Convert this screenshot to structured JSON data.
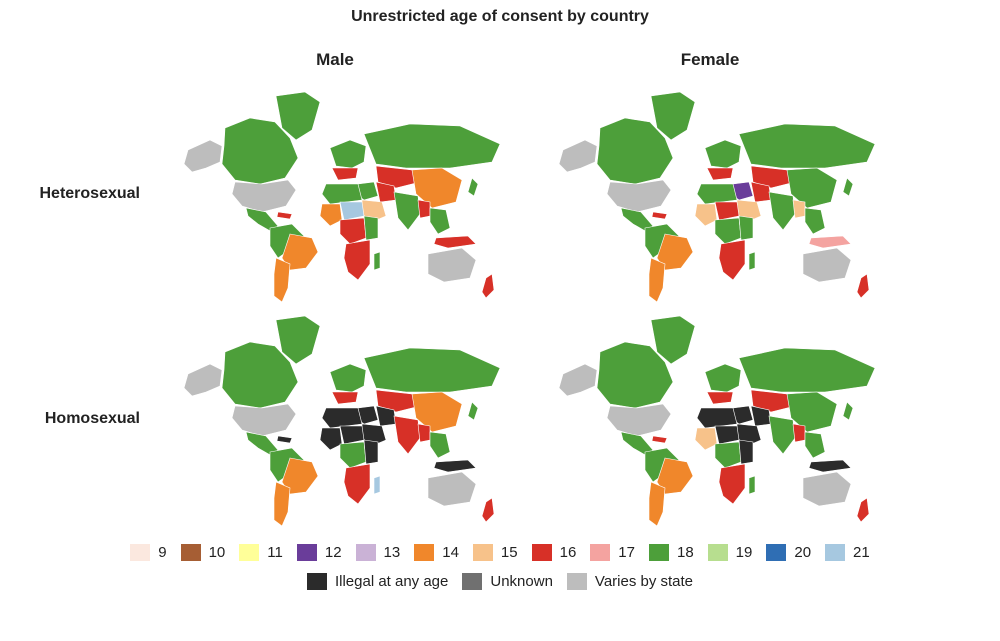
{
  "title": "Unrestricted age of consent by country",
  "columns": [
    "Male",
    "Female"
  ],
  "rows": [
    "Heterosexual",
    "Homosexual"
  ],
  "colors": {
    "9": "#fbe8df",
    "10": "#a65e34",
    "11": "#ffff99",
    "12": "#6a3d9a",
    "13": "#cab2d6",
    "14": "#f0872b",
    "15": "#f7c28a",
    "16": "#d73027",
    "17": "#f4a3a0",
    "18": "#4d9f3a",
    "19": "#b7de8f",
    "20": "#2f6eb4",
    "21": "#a6c8e0",
    "illegal": "#2b2b2b",
    "unknown": "#707070",
    "varies": "#bdbdbd"
  },
  "legend_row1": [
    {
      "label": "9",
      "key": "9"
    },
    {
      "label": "10",
      "key": "10"
    },
    {
      "label": "11",
      "key": "11"
    },
    {
      "label": "12",
      "key": "12"
    },
    {
      "label": "13",
      "key": "13"
    },
    {
      "label": "14",
      "key": "14"
    },
    {
      "label": "15",
      "key": "15"
    },
    {
      "label": "16",
      "key": "16"
    },
    {
      "label": "17",
      "key": "17"
    },
    {
      "label": "18",
      "key": "18"
    },
    {
      "label": "19",
      "key": "19"
    },
    {
      "label": "20",
      "key": "20"
    },
    {
      "label": "21",
      "key": "21"
    }
  ],
  "legend_row2": [
    {
      "label": "Illegal at any age",
      "key": "illegal"
    },
    {
      "label": "Unknown",
      "key": "unknown"
    },
    {
      "label": "Varies by state",
      "key": "varies"
    }
  ],
  "maps": {
    "hetero_male": {
      "north_america": "18",
      "usa": "varies",
      "alaska": "varies",
      "greenland": "18",
      "canada": "18",
      "central_america": "18",
      "caribbean": "16",
      "brazil": "14",
      "south_america": "18",
      "southern_cone": "14",
      "europe": "18",
      "europe_south": "16",
      "russia": "18",
      "central_asia": "16",
      "china": "14",
      "middle_east": "18",
      "arabia": "15",
      "iran": "16",
      "south_asia": "18",
      "india_east": "16",
      "north_africa": "18",
      "west_africa": "14",
      "sahel": "21",
      "central_africa": "16",
      "east_africa": "18",
      "southern_africa": "16",
      "madagascar": "18",
      "southeast_asia": "18",
      "indonesia": "16",
      "australia": "varies",
      "new_zealand": "16",
      "japan": "18"
    },
    "hetero_female": {
      "north_america": "18",
      "usa": "varies",
      "alaska": "varies",
      "greenland": "18",
      "canada": "18",
      "central_america": "18",
      "caribbean": "16",
      "brazil": "14",
      "south_america": "18",
      "southern_cone": "14",
      "europe": "18",
      "europe_south": "16",
      "russia": "18",
      "central_asia": "16",
      "china": "18",
      "middle_east": "12",
      "arabia": "15",
      "iran": "16",
      "south_asia": "18",
      "india_east": "15",
      "north_africa": "18",
      "west_africa": "15",
      "sahel": "16",
      "central_africa": "18",
      "east_africa": "18",
      "southern_africa": "16",
      "madagascar": "18",
      "southeast_asia": "18",
      "indonesia": "17",
      "australia": "varies",
      "new_zealand": "16",
      "japan": "18"
    },
    "homo_male": {
      "north_america": "18",
      "usa": "varies",
      "alaska": "varies",
      "greenland": "18",
      "canada": "18",
      "central_america": "18",
      "caribbean": "illegal",
      "brazil": "14",
      "south_america": "18",
      "southern_cone": "14",
      "europe": "18",
      "europe_south": "16",
      "russia": "18",
      "central_asia": "16",
      "china": "14",
      "middle_east": "illegal",
      "arabia": "illegal",
      "iran": "illegal",
      "south_asia": "16",
      "india_east": "16",
      "north_africa": "illegal",
      "west_africa": "illegal",
      "sahel": "illegal",
      "central_africa": "18",
      "east_africa": "illegal",
      "southern_africa": "16",
      "madagascar": "21",
      "southeast_asia": "18",
      "indonesia": "illegal",
      "australia": "varies",
      "new_zealand": "16",
      "japan": "18"
    },
    "homo_female": {
      "north_america": "18",
      "usa": "varies",
      "alaska": "varies",
      "greenland": "18",
      "canada": "18",
      "central_america": "18",
      "caribbean": "16",
      "brazil": "14",
      "south_america": "18",
      "southern_cone": "14",
      "europe": "18",
      "europe_south": "16",
      "russia": "18",
      "central_asia": "16",
      "china": "18",
      "middle_east": "illegal",
      "arabia": "illegal",
      "iran": "illegal",
      "south_asia": "18",
      "india_east": "16",
      "north_africa": "illegal",
      "west_africa": "15",
      "sahel": "illegal",
      "central_africa": "18",
      "east_africa": "illegal",
      "southern_africa": "16",
      "madagascar": "18",
      "southeast_asia": "18",
      "indonesia": "illegal",
      "australia": "varies",
      "new_zealand": "16",
      "japan": "18"
    }
  }
}
